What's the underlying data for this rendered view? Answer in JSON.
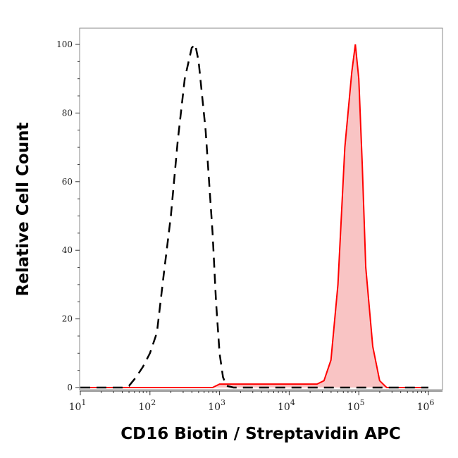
{
  "chart_data": {
    "type": "area",
    "title": "",
    "xlabel": "CD16 Biotin / Streptavidin APC",
    "ylabel": "Relative Cell Count",
    "xscale": "log",
    "xlim": [
      10,
      1500000
    ],
    "ylim": [
      0,
      105
    ],
    "grid": false,
    "legend": "none",
    "x_tick_labels": [
      {
        "base": "10",
        "exp": "1"
      },
      {
        "base": "10",
        "exp": "2"
      },
      {
        "base": "10",
        "exp": "3"
      },
      {
        "base": "10",
        "exp": "4"
      },
      {
        "base": "10",
        "exp": "5"
      },
      {
        "base": "10",
        "exp": "6"
      }
    ],
    "y_tick_labels": [
      "0",
      "20",
      "40",
      "60",
      "80",
      "100"
    ],
    "series": [
      {
        "style": "dashed-black-unfilled",
        "color": "#000000",
        "x": [
          10,
          40,
          50,
          63,
          79,
          100,
          126,
          158,
          200,
          251,
          316,
          398,
          447,
          501,
          631,
          794,
          891,
          1000,
          1122,
          1259,
          1585,
          1000000
        ],
        "y": [
          0,
          0,
          0.5,
          3,
          6,
          10,
          16,
          33,
          50,
          72,
          90,
          99,
          100,
          95,
          75,
          45,
          25,
          10,
          3,
          0.5,
          0,
          0
        ]
      },
      {
        "style": "solid-red-filled",
        "color": "#ff0000",
        "fill": "#f9c4c4",
        "x": [
          10,
          794,
          1000,
          25119,
          31623,
          39811,
          50119,
          63096,
          79433,
          89125,
          100000,
          112202,
          125893,
          158489,
          199526,
          251189,
          1000000
        ],
        "y": [
          0,
          0,
          1,
          1,
          2,
          8,
          30,
          70,
          92,
          100,
          90,
          65,
          35,
          12,
          2,
          0,
          0
        ]
      }
    ]
  }
}
